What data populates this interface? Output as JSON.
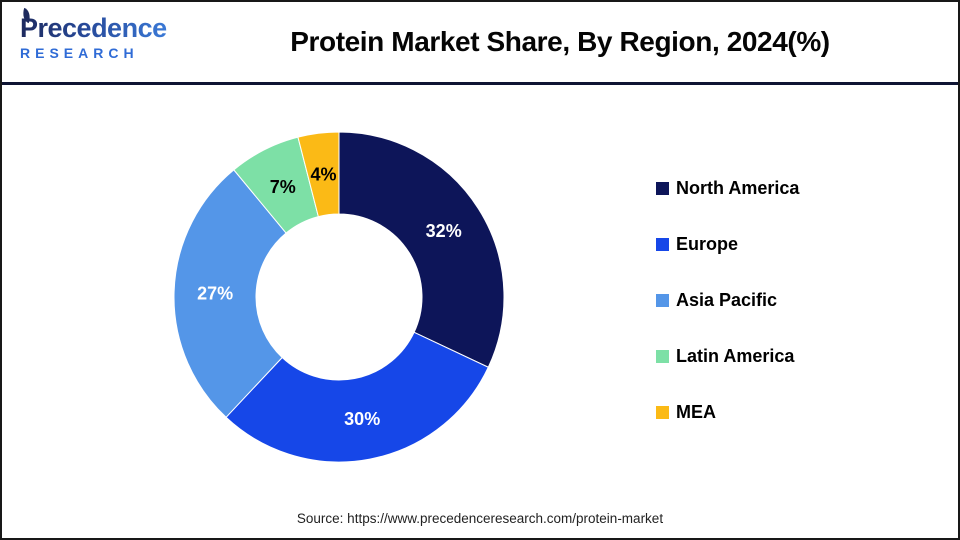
{
  "brand": {
    "name": "Precedence",
    "subname": "RESEARCH"
  },
  "header": {
    "title": "Protein Market Share, By Region, 2024(%)"
  },
  "chart_data": {
    "type": "pie",
    "subtype": "donut",
    "title": "Protein Market Share, By Region, 2024(%)",
    "unit": "%",
    "start_angle_deg": 0,
    "direction": "clockwise",
    "inner_radius_ratio": 0.5,
    "legend_position": "right",
    "categories": [
      "North America",
      "Europe",
      "Asia Pacific",
      "Latin America",
      "MEA"
    ],
    "values": [
      32,
      30,
      27,
      7,
      4
    ],
    "data_labels": [
      "32%",
      "30%",
      "27%",
      "7%",
      "4%"
    ],
    "colors": [
      "#0D1559",
      "#1647E8",
      "#5496E8",
      "#7DE0A6",
      "#FBBA16"
    ],
    "data_label_colors": [
      "#FFFFFF",
      "#FFFFFF",
      "#FFFFFF",
      "#000000",
      "#000000"
    ]
  },
  "footer": {
    "source": "Source: https://www.precedenceresearch.com/protein-market"
  }
}
